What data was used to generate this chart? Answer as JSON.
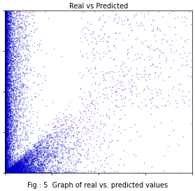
{
  "title": "Real vs Predicted",
  "caption": "Fig : 5  Graph of real vs. predicted values",
  "dot_color": "#0000cc",
  "dot_alpha": 0.35,
  "dot_size": 1.5,
  "background_color": "#ffffff",
  "n_points": 8000,
  "seed": 42,
  "title_fontsize": 7,
  "caption_fontsize": 7,
  "marker": "o"
}
